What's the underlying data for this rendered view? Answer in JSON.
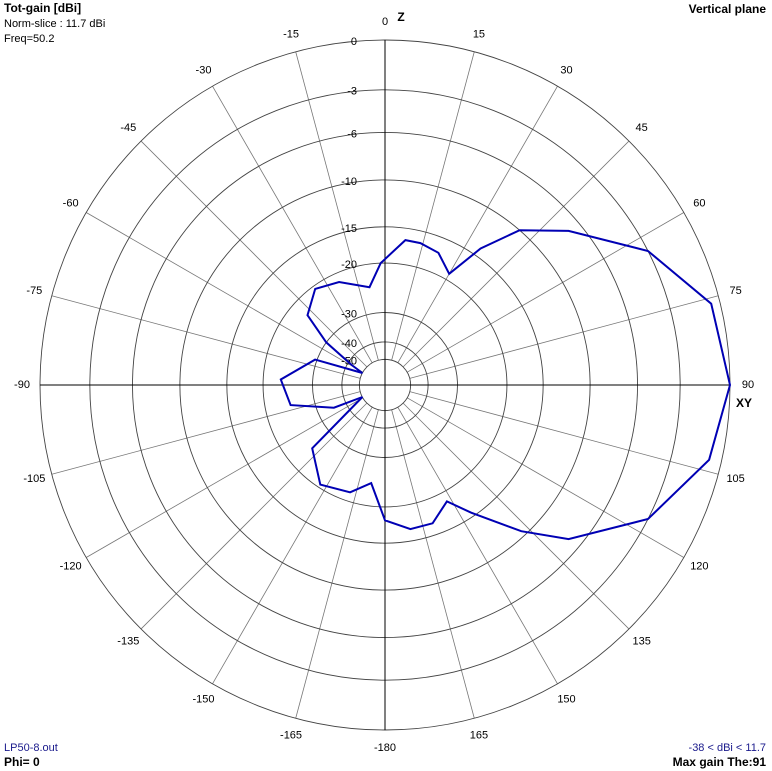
{
  "chart_data": {
    "type": "polar",
    "title": "Tot-gain [dBi]",
    "subtitle": "Norm-slice : 11.7 dBi",
    "frequency": "Freq=50.2",
    "plane": "Vertical plane",
    "top_axis_label": "Z",
    "side_axis_label": "XY",
    "file": "LP50-8.out",
    "phi": "Phi= 0",
    "range_text": "-38 < dBi < 11.7",
    "max_gain": "Max gain The:91",
    "rlim": [
      -50,
      0
    ],
    "rticks": [
      0,
      -3,
      -6,
      -10,
      -15,
      -20,
      -30,
      -40,
      -50
    ],
    "thetaticks": [
      0,
      15,
      30,
      45,
      60,
      75,
      90,
      105,
      120,
      135,
      150,
      165,
      -180,
      -165,
      -150,
      -135,
      -120,
      -105,
      -90,
      -75,
      -60,
      -45,
      -30,
      -15
    ],
    "grid": true,
    "series": [
      {
        "color": "#0000b4",
        "theta": [
          -2,
          8,
          14,
          22,
          30,
          35,
          41,
          50,
          63,
          76,
          90,
          103,
          117,
          130,
          137,
          146,
          152,
          161,
          170,
          180,
          -172,
          -162,
          -147,
          -131,
          -118,
          -114,
          -102,
          -87,
          -70,
          -62,
          -59,
          -54,
          -48,
          -36,
          -24,
          -9
        ],
        "values": [
          -20,
          -16.5,
          -16.5,
          -17,
          -19,
          -14,
          -10,
          -7,
          -3,
          -0.5,
          0,
          -0.7,
          -3,
          -7,
          -10.5,
          -15.5,
          -18.5,
          -16.5,
          -16.5,
          -18,
          -24,
          -21.5,
          -20.5,
          -24.5,
          -50,
          -35,
          -24.5,
          -23,
          -29.5,
          -50,
          -42,
          -30,
          -23,
          -20.5,
          -21.5,
          -24
        ]
      }
    ]
  }
}
